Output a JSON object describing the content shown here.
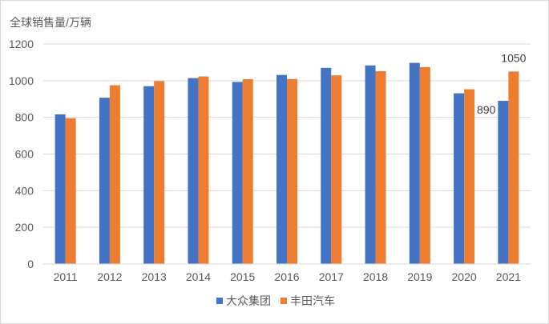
{
  "chart_data": {
    "type": "bar",
    "ylabel": "全球销售量/万辆",
    "xlabel": "",
    "categories": [
      "2011",
      "2012",
      "2013",
      "2014",
      "2015",
      "2016",
      "2017",
      "2018",
      "2019",
      "2020",
      "2021"
    ],
    "series": [
      {
        "name": "大众集团",
        "color": "#4472c4",
        "values": [
          816,
          907,
          970,
          1014,
          993,
          1031,
          1070,
          1083,
          1097,
          931,
          890
        ]
      },
      {
        "name": "丰田汽车",
        "color": "#ed7d31",
        "values": [
          795,
          975,
          998,
          1023,
          1008,
          1009,
          1029,
          1052,
          1074,
          953,
          1050
        ]
      }
    ],
    "ylim": [
      0,
      1200
    ],
    "yticks": [
      0,
      200,
      400,
      600,
      800,
      1000,
      1200
    ],
    "data_labels": [
      {
        "series": 0,
        "category": "2021",
        "text": "890"
      },
      {
        "series": 1,
        "category": "2021",
        "text": "1050"
      }
    ],
    "grid": true,
    "legend_position": "bottom"
  }
}
